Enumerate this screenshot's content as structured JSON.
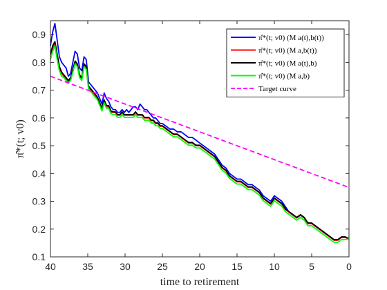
{
  "chart_data": {
    "type": "line",
    "xlabel": "time to retirement",
    "ylabel": "π̂*(t; v0)",
    "xlim": [
      40,
      0
    ],
    "x_reversed": true,
    "ylim": [
      0.1,
      0.95
    ],
    "x_ticks": [
      40,
      35,
      30,
      25,
      20,
      15,
      10,
      5,
      0
    ],
    "y_ticks": [
      0.1,
      0.2,
      0.3,
      0.4,
      0.5,
      0.6,
      0.7,
      0.8,
      0.9
    ],
    "x_tick_labels": [
      "40",
      "35",
      "30",
      "25",
      "20",
      "15",
      "10",
      "5",
      "0"
    ],
    "y_tick_labels": [
      "0.1",
      "0.2",
      "0.3",
      "0.4",
      "0.5",
      "0.6",
      "0.7",
      "0.8",
      "0.9"
    ],
    "grid": false,
    "legend_position": "top-right",
    "legend": [
      "π̂*(t; v0)  (M a(t),b(t))",
      "π̂*(t; v0)  (M a,b(t))",
      "π̂*(t; v0)  (M a(t),b)",
      "π̂*(t; v0)  (M a,b)",
      "Target curve"
    ],
    "colors": {
      "blue": "#0000ff",
      "red": "#ff0000",
      "black": "#000000",
      "green": "#00ff00",
      "magenta": "#ff00ff"
    },
    "series": [
      {
        "name": "π̂*(t; v0)  (M a(t),b(t))",
        "color": "#0000ff",
        "x": [
          40,
          39.7,
          39.4,
          39.1,
          38.8,
          38.5,
          38.2,
          37.9,
          37.6,
          37.3,
          37.0,
          36.7,
          36.4,
          36.1,
          35.8,
          35.5,
          35.2,
          34.9,
          34.6,
          34.3,
          34.0,
          33.7,
          33.4,
          33.1,
          32.8,
          32.5,
          32.2,
          31.9,
          31.6,
          31.3,
          31.0,
          30.7,
          30.4,
          30.1,
          29.8,
          29.5,
          29.2,
          28.9,
          28.6,
          28.3,
          28.0,
          27.7,
          27.4,
          27.1,
          26.8,
          26.5,
          26.2,
          25.9,
          25.6,
          25.3,
          25.0,
          24.5,
          24.0,
          23.5,
          23.0,
          22.5,
          22.0,
          21.5,
          21.0,
          20.5,
          20.0,
          19.5,
          19.0,
          18.5,
          18.0,
          17.5,
          17.0,
          16.5,
          16.0,
          15.5,
          15.0,
          14.5,
          14.0,
          13.5,
          13.0,
          12.5,
          12.0,
          11.5,
          11.0,
          10.5,
          10.0,
          9.5,
          9.0,
          8.5,
          8.0,
          7.5,
          7.0,
          6.5,
          6.0,
          5.5,
          5.0,
          4.5,
          4.0,
          3.5,
          3.0,
          2.5,
          2.0,
          1.5,
          1.0,
          0.5,
          0.0
        ],
        "y": [
          0.86,
          0.91,
          0.94,
          0.88,
          0.82,
          0.8,
          0.79,
          0.78,
          0.75,
          0.76,
          0.8,
          0.84,
          0.83,
          0.78,
          0.77,
          0.82,
          0.81,
          0.73,
          0.72,
          0.71,
          0.7,
          0.69,
          0.67,
          0.65,
          0.69,
          0.67,
          0.66,
          0.64,
          0.63,
          0.63,
          0.62,
          0.62,
          0.63,
          0.62,
          0.63,
          0.62,
          0.63,
          0.64,
          0.64,
          0.63,
          0.65,
          0.64,
          0.63,
          0.63,
          0.62,
          0.61,
          0.6,
          0.6,
          0.59,
          0.58,
          0.58,
          0.57,
          0.56,
          0.56,
          0.55,
          0.55,
          0.54,
          0.53,
          0.53,
          0.52,
          0.51,
          0.5,
          0.49,
          0.48,
          0.47,
          0.45,
          0.43,
          0.42,
          0.4,
          0.39,
          0.38,
          0.38,
          0.37,
          0.36,
          0.36,
          0.35,
          0.34,
          0.32,
          0.31,
          0.3,
          0.32,
          0.31,
          0.3,
          0.28,
          0.26,
          0.25,
          0.24,
          0.25,
          0.24,
          0.22,
          0.22,
          0.21,
          0.2,
          0.19,
          0.18,
          0.17,
          0.16,
          0.16,
          0.17,
          0.17,
          0.165
        ]
      },
      {
        "name": "π̂*(t; v0)  (M a,b(t))",
        "color": "#ff0000",
        "x": [
          40,
          39.7,
          39.4,
          39.1,
          38.8,
          38.5,
          38.2,
          37.9,
          37.6,
          37.3,
          37.0,
          36.7,
          36.4,
          36.1,
          35.8,
          35.5,
          35.2,
          34.9,
          34.6,
          34.3,
          34.0,
          33.7,
          33.4,
          33.1,
          32.8,
          32.5,
          32.2,
          31.9,
          31.6,
          31.3,
          31.0,
          30.7,
          30.4,
          30.1,
          29.8,
          29.5,
          29.2,
          28.9,
          28.6,
          28.3,
          28.0,
          27.7,
          27.4,
          27.1,
          26.8,
          26.5,
          26.2,
          25.9,
          25.6,
          25.3,
          25.0,
          24.5,
          24.0,
          23.5,
          23.0,
          22.5,
          22.0,
          21.5,
          21.0,
          20.5,
          20.0,
          19.5,
          19.0,
          18.5,
          18.0,
          17.5,
          17.0,
          16.5,
          16.0,
          15.5,
          15.0,
          14.5,
          14.0,
          13.5,
          13.0,
          12.5,
          12.0,
          11.5,
          11.0,
          10.5,
          10.0,
          9.5,
          9.0,
          8.5,
          8.0,
          7.5,
          7.0,
          6.5,
          6.0,
          5.5,
          5.0,
          4.5,
          4.0,
          3.5,
          3.0,
          2.5,
          2.0,
          1.5,
          1.0,
          0.5,
          0.0
        ],
        "y": [
          0.82,
          0.85,
          0.87,
          0.82,
          0.78,
          0.76,
          0.75,
          0.74,
          0.73,
          0.74,
          0.77,
          0.8,
          0.79,
          0.75,
          0.74,
          0.79,
          0.78,
          0.71,
          0.7,
          0.69,
          0.68,
          0.67,
          0.65,
          0.63,
          0.66,
          0.64,
          0.64,
          0.62,
          0.62,
          0.62,
          0.61,
          0.61,
          0.62,
          0.61,
          0.61,
          0.61,
          0.61,
          0.61,
          0.62,
          0.61,
          0.61,
          0.61,
          0.6,
          0.6,
          0.6,
          0.59,
          0.59,
          0.58,
          0.58,
          0.57,
          0.57,
          0.56,
          0.55,
          0.54,
          0.54,
          0.53,
          0.52,
          0.51,
          0.51,
          0.5,
          0.5,
          0.49,
          0.48,
          0.47,
          0.46,
          0.44,
          0.42,
          0.41,
          0.39,
          0.38,
          0.37,
          0.37,
          0.36,
          0.35,
          0.35,
          0.34,
          0.33,
          0.31,
          0.3,
          0.29,
          0.31,
          0.3,
          0.29,
          0.27,
          0.26,
          0.25,
          0.24,
          0.25,
          0.24,
          0.22,
          0.22,
          0.21,
          0.2,
          0.19,
          0.18,
          0.17,
          0.16,
          0.16,
          0.17,
          0.17,
          0.165
        ]
      },
      {
        "name": "π̂*(t; v0)  (M a(t),b)",
        "color": "#000000",
        "x": [
          40,
          39.7,
          39.4,
          39.1,
          38.8,
          38.5,
          38.2,
          37.9,
          37.6,
          37.3,
          37.0,
          36.7,
          36.4,
          36.1,
          35.8,
          35.5,
          35.2,
          34.9,
          34.6,
          34.3,
          34.0,
          33.7,
          33.4,
          33.1,
          32.8,
          32.5,
          32.2,
          31.9,
          31.6,
          31.3,
          31.0,
          30.7,
          30.4,
          30.1,
          29.8,
          29.5,
          29.2,
          28.9,
          28.6,
          28.3,
          28.0,
          27.7,
          27.4,
          27.1,
          26.8,
          26.5,
          26.2,
          25.9,
          25.6,
          25.3,
          25.0,
          24.5,
          24.0,
          23.5,
          23.0,
          22.5,
          22.0,
          21.5,
          21.0,
          20.5,
          20.0,
          19.5,
          19.0,
          18.5,
          18.0,
          17.5,
          17.0,
          16.5,
          16.0,
          15.5,
          15.0,
          14.5,
          14.0,
          13.5,
          13.0,
          12.5,
          12.0,
          11.5,
          11.0,
          10.5,
          10.0,
          9.5,
          9.0,
          8.5,
          8.0,
          7.5,
          7.0,
          6.5,
          6.0,
          5.5,
          5.0,
          4.5,
          4.0,
          3.5,
          3.0,
          2.5,
          2.0,
          1.5,
          1.0,
          0.5,
          0.0
        ],
        "y": [
          0.83,
          0.86,
          0.875,
          0.83,
          0.785,
          0.765,
          0.755,
          0.745,
          0.735,
          0.745,
          0.775,
          0.805,
          0.795,
          0.755,
          0.745,
          0.795,
          0.785,
          0.715,
          0.705,
          0.695,
          0.685,
          0.675,
          0.655,
          0.635,
          0.665,
          0.645,
          0.645,
          0.625,
          0.622,
          0.622,
          0.612,
          0.612,
          0.622,
          0.612,
          0.612,
          0.612,
          0.612,
          0.612,
          0.622,
          0.612,
          0.612,
          0.612,
          0.602,
          0.602,
          0.602,
          0.592,
          0.592,
          0.582,
          0.582,
          0.572,
          0.572,
          0.562,
          0.552,
          0.542,
          0.542,
          0.532,
          0.522,
          0.512,
          0.512,
          0.502,
          0.502,
          0.492,
          0.482,
          0.472,
          0.462,
          0.442,
          0.422,
          0.412,
          0.392,
          0.382,
          0.372,
          0.372,
          0.362,
          0.352,
          0.352,
          0.342,
          0.332,
          0.312,
          0.302,
          0.292,
          0.312,
          0.302,
          0.292,
          0.272,
          0.262,
          0.252,
          0.242,
          0.252,
          0.242,
          0.222,
          0.222,
          0.212,
          0.202,
          0.192,
          0.182,
          0.172,
          0.162,
          0.162,
          0.172,
          0.172,
          0.165
        ]
      },
      {
        "name": "π̂*(t; v0)  (M a,b)",
        "color": "#00ff00",
        "x": [
          40,
          39.7,
          39.4,
          39.1,
          38.8,
          38.5,
          38.2,
          37.9,
          37.6,
          37.3,
          37.0,
          36.7,
          36.4,
          36.1,
          35.8,
          35.5,
          35.2,
          34.9,
          34.6,
          34.3,
          34.0,
          33.7,
          33.4,
          33.1,
          32.8,
          32.5,
          32.2,
          31.9,
          31.6,
          31.3,
          31.0,
          30.7,
          30.4,
          30.1,
          29.8,
          29.5,
          29.2,
          28.9,
          28.6,
          28.3,
          28.0,
          27.7,
          27.4,
          27.1,
          26.8,
          26.5,
          26.2,
          25.9,
          25.6,
          25.3,
          25.0,
          24.5,
          24.0,
          23.5,
          23.0,
          22.5,
          22.0,
          21.5,
          21.0,
          20.5,
          20.0,
          19.5,
          19.0,
          18.5,
          18.0,
          17.5,
          17.0,
          16.5,
          16.0,
          15.5,
          15.0,
          14.5,
          14.0,
          13.5,
          13.0,
          12.5,
          12.0,
          11.5,
          11.0,
          10.5,
          10.0,
          9.5,
          9.0,
          8.5,
          8.0,
          7.5,
          7.0,
          6.5,
          6.0,
          5.5,
          5.0,
          4.5,
          4.0,
          3.5,
          3.0,
          2.5,
          2.0,
          1.5,
          1.0,
          0.5,
          0.0
        ],
        "y": [
          0.81,
          0.84,
          0.86,
          0.81,
          0.77,
          0.75,
          0.745,
          0.735,
          0.725,
          0.735,
          0.765,
          0.795,
          0.785,
          0.745,
          0.735,
          0.785,
          0.775,
          0.705,
          0.695,
          0.685,
          0.675,
          0.665,
          0.645,
          0.625,
          0.655,
          0.635,
          0.635,
          0.615,
          0.612,
          0.612,
          0.602,
          0.602,
          0.612,
          0.602,
          0.602,
          0.602,
          0.602,
          0.602,
          0.612,
          0.602,
          0.602,
          0.602,
          0.592,
          0.592,
          0.592,
          0.582,
          0.582,
          0.572,
          0.572,
          0.562,
          0.562,
          0.552,
          0.542,
          0.532,
          0.532,
          0.522,
          0.512,
          0.502,
          0.502,
          0.492,
          0.492,
          0.482,
          0.472,
          0.462,
          0.452,
          0.432,
          0.412,
          0.402,
          0.382,
          0.372,
          0.362,
          0.362,
          0.352,
          0.342,
          0.342,
          0.332,
          0.322,
          0.302,
          0.292,
          0.282,
          0.302,
          0.292,
          0.282,
          0.262,
          0.252,
          0.242,
          0.232,
          0.242,
          0.232,
          0.212,
          0.212,
          0.202,
          0.192,
          0.182,
          0.172,
          0.162,
          0.152,
          0.152,
          0.162,
          0.162,
          0.165
        ]
      },
      {
        "name": "Target curve",
        "color": "#ff00ff",
        "style": "dashed",
        "x": [
          40,
          0
        ],
        "y": [
          0.75,
          0.35
        ]
      }
    ]
  }
}
